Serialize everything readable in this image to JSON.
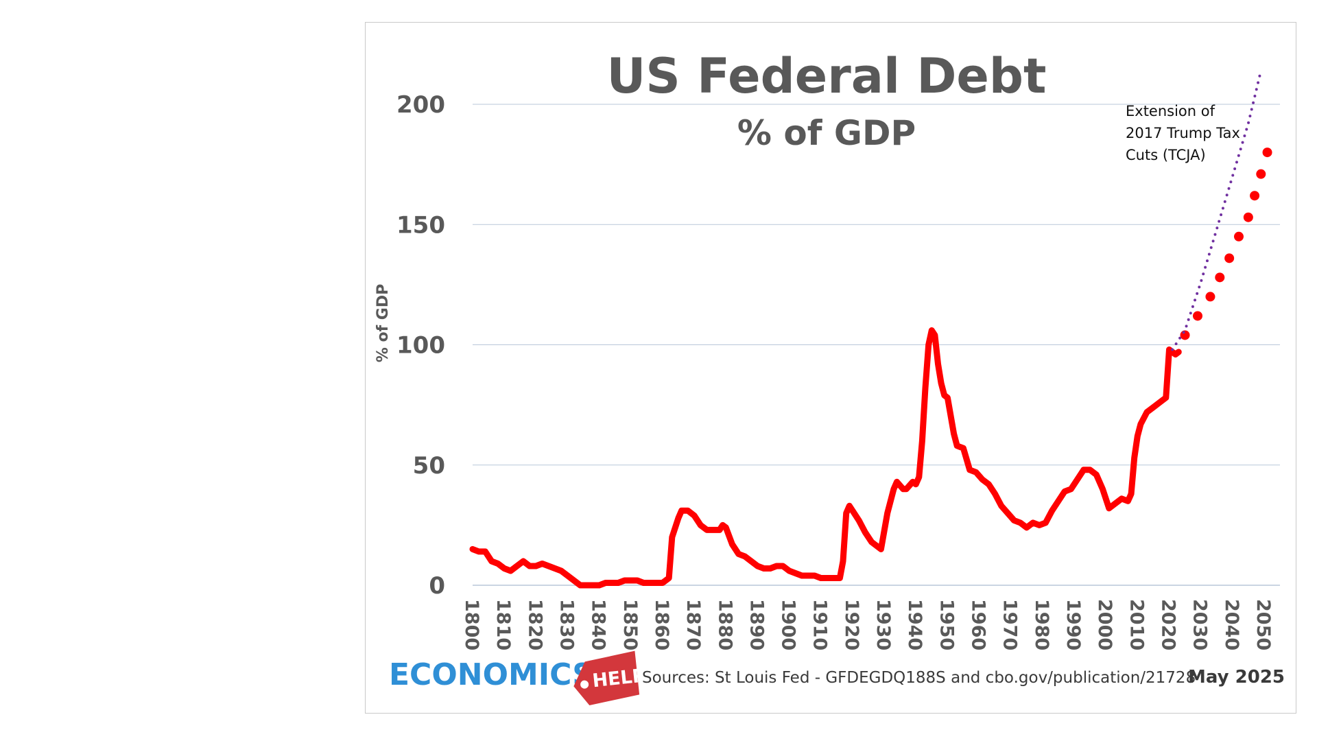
{
  "chart_data": {
    "type": "line",
    "title": "US Federal Debt",
    "subtitle": "% of GDP",
    "ylabel": "% of GDP",
    "xlabel": "",
    "ylim": [
      0,
      200
    ],
    "xlim": [
      1800,
      2055
    ],
    "yticks": [
      0,
      50,
      100,
      150,
      200
    ],
    "xticks": [
      "1800",
      "1810",
      "1820",
      "1830",
      "1840",
      "1850",
      "1860",
      "1870",
      "1880",
      "1890",
      "1900",
      "1910",
      "1920",
      "1930",
      "1940",
      "1950",
      "1960",
      "1970",
      "1980",
      "1990",
      "2000",
      "2010",
      "2020",
      "2030",
      "2040",
      "2050"
    ],
    "grid": true,
    "colors": {
      "historical": "#ff0000",
      "projection": "#ff0000",
      "tcja": "#7030a0",
      "grid": "#b8c7d9",
      "text": "#595959"
    },
    "series": [
      {
        "style": "solid",
        "points": [
          [
            1800,
            15
          ],
          [
            1802,
            14
          ],
          [
            1804,
            14
          ],
          [
            1806,
            10
          ],
          [
            1808,
            9
          ],
          [
            1810,
            7
          ],
          [
            1812,
            6
          ],
          [
            1814,
            8
          ],
          [
            1816,
            10
          ],
          [
            1818,
            8
          ],
          [
            1820,
            8
          ],
          [
            1822,
            9
          ],
          [
            1824,
            8
          ],
          [
            1826,
            7
          ],
          [
            1828,
            6
          ],
          [
            1830,
            4
          ],
          [
            1832,
            2
          ],
          [
            1834,
            0
          ],
          [
            1836,
            0
          ],
          [
            1838,
            0
          ],
          [
            1840,
            0
          ],
          [
            1842,
            1
          ],
          [
            1844,
            1
          ],
          [
            1846,
            1
          ],
          [
            1848,
            2
          ],
          [
            1850,
            2
          ],
          [
            1852,
            2
          ],
          [
            1854,
            1
          ],
          [
            1856,
            1
          ],
          [
            1858,
            1
          ],
          [
            1860,
            1
          ],
          [
            1862,
            3
          ],
          [
            1863,
            20
          ],
          [
            1865,
            28
          ],
          [
            1866,
            31
          ],
          [
            1868,
            31
          ],
          [
            1870,
            29
          ],
          [
            1872,
            25
          ],
          [
            1874,
            23
          ],
          [
            1876,
            23
          ],
          [
            1878,
            23
          ],
          [
            1879,
            25
          ],
          [
            1880,
            24
          ],
          [
            1882,
            17
          ],
          [
            1884,
            13
          ],
          [
            1886,
            12
          ],
          [
            1888,
            10
          ],
          [
            1890,
            8
          ],
          [
            1892,
            7
          ],
          [
            1894,
            7
          ],
          [
            1896,
            8
          ],
          [
            1898,
            8
          ],
          [
            1900,
            6
          ],
          [
            1902,
            5
          ],
          [
            1904,
            4
          ],
          [
            1906,
            4
          ],
          [
            1908,
            4
          ],
          [
            1910,
            3
          ],
          [
            1912,
            3
          ],
          [
            1914,
            3
          ],
          [
            1916,
            3
          ],
          [
            1917,
            10
          ],
          [
            1918,
            30
          ],
          [
            1919,
            33
          ],
          [
            1920,
            31
          ],
          [
            1922,
            27
          ],
          [
            1924,
            22
          ],
          [
            1926,
            18
          ],
          [
            1928,
            16
          ],
          [
            1929,
            15
          ],
          [
            1931,
            30
          ],
          [
            1933,
            40
          ],
          [
            1934,
            43
          ],
          [
            1936,
            40
          ],
          [
            1937,
            40
          ],
          [
            1939,
            43
          ],
          [
            1940,
            42
          ],
          [
            1941,
            45
          ],
          [
            1942,
            60
          ],
          [
            1943,
            82
          ],
          [
            1944,
            100
          ],
          [
            1945,
            106
          ],
          [
            1946,
            104
          ],
          [
            1947,
            92
          ],
          [
            1948,
            84
          ],
          [
            1949,
            79
          ],
          [
            1950,
            78
          ],
          [
            1952,
            63
          ],
          [
            1953,
            58
          ],
          [
            1955,
            57
          ],
          [
            1957,
            48
          ],
          [
            1959,
            47
          ],
          [
            1961,
            44
          ],
          [
            1963,
            42
          ],
          [
            1965,
            38
          ],
          [
            1967,
            33
          ],
          [
            1969,
            30
          ],
          [
            1971,
            27
          ],
          [
            1973,
            26
          ],
          [
            1975,
            24
          ],
          [
            1977,
            26
          ],
          [
            1979,
            25
          ],
          [
            1981,
            26
          ],
          [
            1983,
            31
          ],
          [
            1985,
            35
          ],
          [
            1987,
            39
          ],
          [
            1989,
            40
          ],
          [
            1991,
            44
          ],
          [
            1993,
            48
          ],
          [
            1995,
            48
          ],
          [
            1997,
            46
          ],
          [
            1999,
            40
          ],
          [
            2001,
            32
          ],
          [
            2003,
            34
          ],
          [
            2005,
            36
          ],
          [
            2007,
            35
          ],
          [
            2008,
            38
          ],
          [
            2009,
            53
          ],
          [
            2010,
            62
          ],
          [
            2011,
            67
          ],
          [
            2013,
            72
          ],
          [
            2015,
            74
          ],
          [
            2017,
            76
          ],
          [
            2019,
            78
          ],
          [
            2020,
            98
          ],
          [
            2021,
            97
          ],
          [
            2022,
            96
          ],
          [
            2023,
            97
          ]
        ]
      },
      {
        "style": "dots",
        "points": [
          [
            2025,
            104
          ],
          [
            2029,
            112
          ],
          [
            2033,
            120
          ],
          [
            2036,
            128
          ],
          [
            2039,
            136
          ],
          [
            2042,
            145
          ],
          [
            2045,
            153
          ],
          [
            2047,
            162
          ],
          [
            2049,
            171
          ],
          [
            2051,
            180
          ]
        ]
      },
      {
        "style": "dotted-line",
        "points": [
          [
            2021,
            98
          ],
          [
            2025,
            106
          ],
          [
            2030,
            126
          ],
          [
            2035,
            148
          ],
          [
            2040,
            170
          ],
          [
            2045,
            192
          ],
          [
            2049,
            214
          ]
        ]
      }
    ],
    "annotation": [
      "Extension of",
      "2017 Trump Tax",
      "Cuts (TCJA)"
    ]
  },
  "footer": {
    "logo_economics": "ECONOMICS",
    "logo_help": "HELP",
    "source": "Sources: St Louis Fed - GFDEGDQ188S and cbo.gov/publication/21728",
    "date": "May 2025"
  }
}
